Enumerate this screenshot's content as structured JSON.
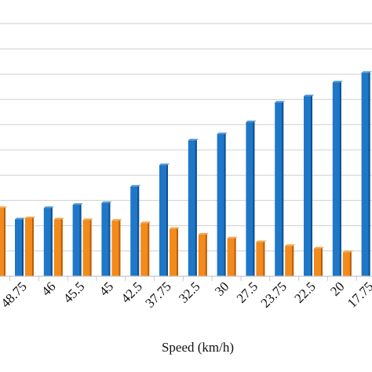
{
  "chart_data": {
    "type": "bar",
    "xlabel": "Speed (km/h)",
    "ylabel": "",
    "title": "",
    "categories": [
      "48.75",
      "46",
      "45.5",
      "45",
      "42.5",
      "37.75",
      "32.5",
      "30",
      "27.5",
      "23.75",
      "22.5",
      "20",
      "17.75"
    ],
    "series": [
      {
        "values": [
          4.5,
          5.4,
          5.65,
          5.8,
          7.1,
          8.8,
          10.75,
          11.25,
          12.2,
          13.75,
          14.25,
          15.35,
          16.1
        ]
      },
      {
        "values": [
          4.6,
          4.5,
          4.45,
          4.4,
          4.2,
          3.75,
          3.3,
          3.0,
          2.7,
          2.4,
          2.2,
          1.9,
          0
        ]
      }
    ],
    "partial_left_series2_value": 5.4,
    "ylim": [
      0,
      20
    ],
    "grid": true,
    "colors": {
      "series1": "#1f77c8",
      "series2": "#f28a1c",
      "series1_dark": "#0f4f8f",
      "series2_dark": "#b85e0c",
      "grid": "#d0d0d0"
    }
  }
}
